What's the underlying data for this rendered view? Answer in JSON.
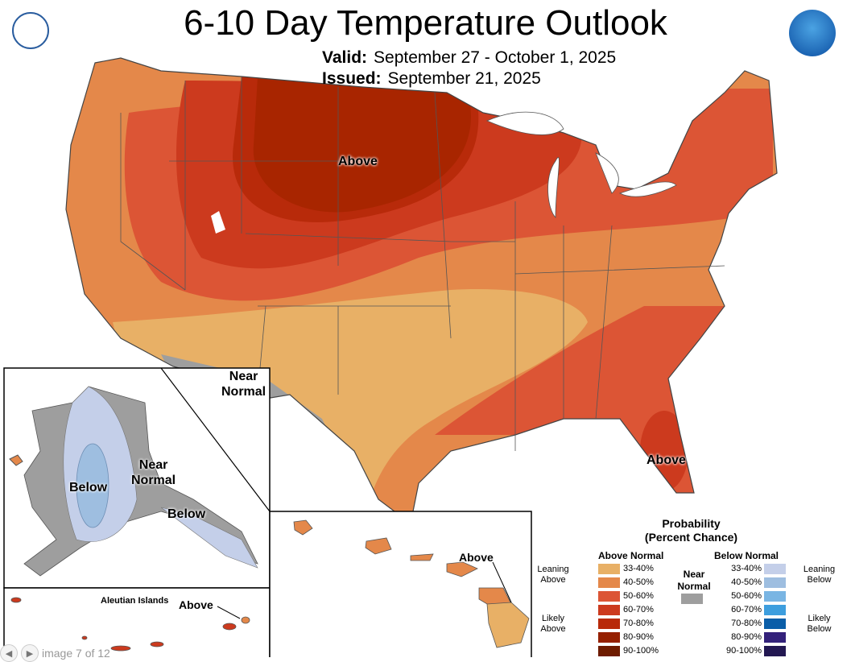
{
  "title": "6-10 Day Temperature Outlook",
  "valid_label": "Valid:",
  "valid_dates": "September 27 - October 1, 2025",
  "issued_label": "Issued:",
  "issued_date": "September 21, 2025",
  "logos": {
    "left": "Department of Commerce seal",
    "right": "NOAA"
  },
  "map_labels": {
    "north_central": "Above",
    "southwest_line1": "Near",
    "southwest_line2": "Normal",
    "florida": "Above",
    "alaska_below": "Below",
    "alaska_near_line1": "Near",
    "alaska_near_line2": "Normal",
    "alaska_se": "Below",
    "aleutian_title": "Aleutian Islands",
    "aleutian_above": "Above",
    "hawaii_above": "Above"
  },
  "legend": {
    "title_line1": "Probability",
    "title_line2": "(Percent Chance)",
    "above_header": "Above Normal",
    "below_header": "Below Normal",
    "near_line1": "Near",
    "near_line2": "Normal",
    "near_color": "#9e9e9e",
    "leaning_above": "Leaning Above",
    "likely_above": "Likely Above",
    "leaning_below": "Leaning Below",
    "likely_below": "Likely Below",
    "above": [
      {
        "range": "33-40%",
        "color": "#e8b066"
      },
      {
        "range": "40-50%",
        "color": "#e4884a"
      },
      {
        "range": "50-60%",
        "color": "#dc5535"
      },
      {
        "range": "60-70%",
        "color": "#cc3a1e"
      },
      {
        "range": "70-80%",
        "color": "#b82a0a"
      },
      {
        "range": "80-90%",
        "color": "#952000"
      },
      {
        "range": "90-100%",
        "color": "#6e1c00"
      }
    ],
    "below": [
      {
        "range": "33-40%",
        "color": "#c4cfe9"
      },
      {
        "range": "40-50%",
        "color": "#9ebee0"
      },
      {
        "range": "50-60%",
        "color": "#79b5e3"
      },
      {
        "range": "60-70%",
        "color": "#3d9ede"
      },
      {
        "range": "70-80%",
        "color": "#0a5ea8"
      },
      {
        "range": "80-90%",
        "color": "#33217a"
      },
      {
        "range": "90-100%",
        "color": "#231852"
      }
    ]
  },
  "viewer": {
    "counter": "image 7 of 12"
  }
}
